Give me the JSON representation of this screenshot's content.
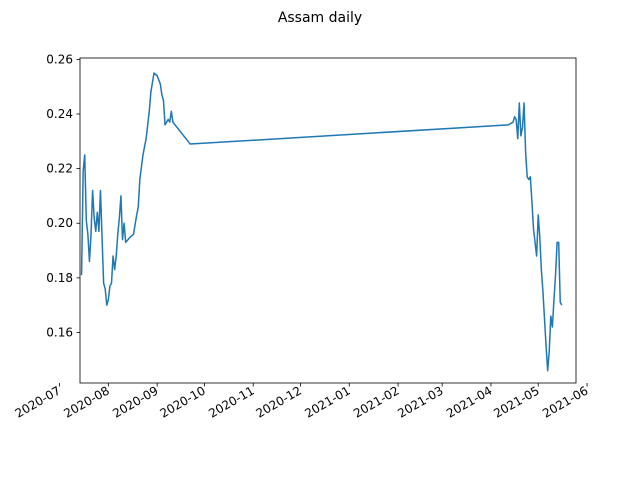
{
  "chart_data": {
    "type": "line",
    "title": "Assam daily",
    "xlabel": "",
    "ylabel": "",
    "x_ticks": [
      "2020-07",
      "2020-08",
      "2020-09",
      "2020-10",
      "2020-11",
      "2020-12",
      "2021-01",
      "2021-02",
      "2021-03",
      "2021-04",
      "2021-05",
      "2021-06"
    ],
    "y_ticks": [
      "0.16",
      "0.18",
      "0.20",
      "0.22",
      "0.24",
      "0.26"
    ],
    "xlim": [
      "2020-07-14",
      "2021-05-25"
    ],
    "ylim": [
      0.1415,
      0.2605
    ],
    "grid": false,
    "line_color": "#1f77b4",
    "series": [
      {
        "name": "Assam",
        "points": [
          [
            "2020-07-15",
            0.181
          ],
          [
            "2020-07-16",
            0.219
          ],
          [
            "2020-07-17",
            0.225
          ],
          [
            "2020-07-18",
            0.201
          ],
          [
            "2020-07-19",
            0.196
          ],
          [
            "2020-07-20",
            0.186
          ],
          [
            "2020-07-21",
            0.196
          ],
          [
            "2020-07-22",
            0.212
          ],
          [
            "2020-07-23",
            0.202
          ],
          [
            "2020-07-24",
            0.197
          ],
          [
            "2020-07-25",
            0.204
          ],
          [
            "2020-07-26",
            0.197
          ],
          [
            "2020-07-27",
            0.212
          ],
          [
            "2020-07-28",
            0.195
          ],
          [
            "2020-07-29",
            0.178
          ],
          [
            "2020-07-30",
            0.176
          ],
          [
            "2020-07-31",
            0.17
          ],
          [
            "2020-08-01",
            0.172
          ],
          [
            "2020-08-02",
            0.177
          ],
          [
            "2020-08-03",
            0.178
          ],
          [
            "2020-08-04",
            0.188
          ],
          [
            "2020-08-05",
            0.183
          ],
          [
            "2020-08-06",
            0.188
          ],
          [
            "2020-08-07",
            0.196
          ],
          [
            "2020-08-08",
            0.202
          ],
          [
            "2020-08-09",
            0.21
          ],
          [
            "2020-08-10",
            0.194
          ],
          [
            "2020-08-11",
            0.2
          ],
          [
            "2020-08-12",
            0.193
          ],
          [
            "2020-08-15",
            0.195
          ],
          [
            "2020-08-17",
            0.196
          ],
          [
            "2020-08-19",
            0.203
          ],
          [
            "2020-08-20",
            0.206
          ],
          [
            "2020-08-21",
            0.216
          ],
          [
            "2020-08-23",
            0.225
          ],
          [
            "2020-08-25",
            0.231
          ],
          [
            "2020-08-27",
            0.241
          ],
          [
            "2020-08-28",
            0.248
          ],
          [
            "2020-08-30",
            0.255
          ],
          [
            "2020-09-01",
            0.254
          ],
          [
            "2020-09-03",
            0.251
          ],
          [
            "2020-09-04",
            0.247
          ],
          [
            "2020-09-05",
            0.245
          ],
          [
            "2020-09-06",
            0.236
          ],
          [
            "2020-09-07",
            0.237
          ],
          [
            "2020-09-08",
            0.238
          ],
          [
            "2020-09-09",
            0.237
          ],
          [
            "2020-09-10",
            0.241
          ],
          [
            "2020-09-11",
            0.237
          ],
          [
            "2020-09-22",
            0.229
          ],
          [
            "2021-04-12",
            0.236
          ],
          [
            "2021-04-15",
            0.237
          ],
          [
            "2021-04-16",
            0.239
          ],
          [
            "2021-04-17",
            0.238
          ],
          [
            "2021-04-18",
            0.231
          ],
          [
            "2021-04-19",
            0.244
          ],
          [
            "2021-04-20",
            0.232
          ],
          [
            "2021-04-21",
            0.235
          ],
          [
            "2021-04-22",
            0.244
          ],
          [
            "2021-04-23",
            0.226
          ],
          [
            "2021-04-24",
            0.217
          ],
          [
            "2021-04-25",
            0.216
          ],
          [
            "2021-04-26",
            0.217
          ],
          [
            "2021-04-27",
            0.208
          ],
          [
            "2021-04-28",
            0.198
          ],
          [
            "2021-04-29",
            0.193
          ],
          [
            "2021-04-30",
            0.188
          ],
          [
            "2021-05-01",
            0.203
          ],
          [
            "2021-05-02",
            0.195
          ],
          [
            "2021-05-03",
            0.183
          ],
          [
            "2021-05-04",
            0.175
          ],
          [
            "2021-05-05",
            0.165
          ],
          [
            "2021-05-06",
            0.155
          ],
          [
            "2021-05-07",
            0.146
          ],
          [
            "2021-05-08",
            0.153
          ],
          [
            "2021-05-09",
            0.166
          ],
          [
            "2021-05-10",
            0.162
          ],
          [
            "2021-05-11",
            0.172
          ],
          [
            "2021-05-12",
            0.181
          ],
          [
            "2021-05-13",
            0.193
          ],
          [
            "2021-05-14",
            0.193
          ],
          [
            "2021-05-15",
            0.171
          ],
          [
            "2021-05-16",
            0.17
          ]
        ]
      }
    ]
  }
}
